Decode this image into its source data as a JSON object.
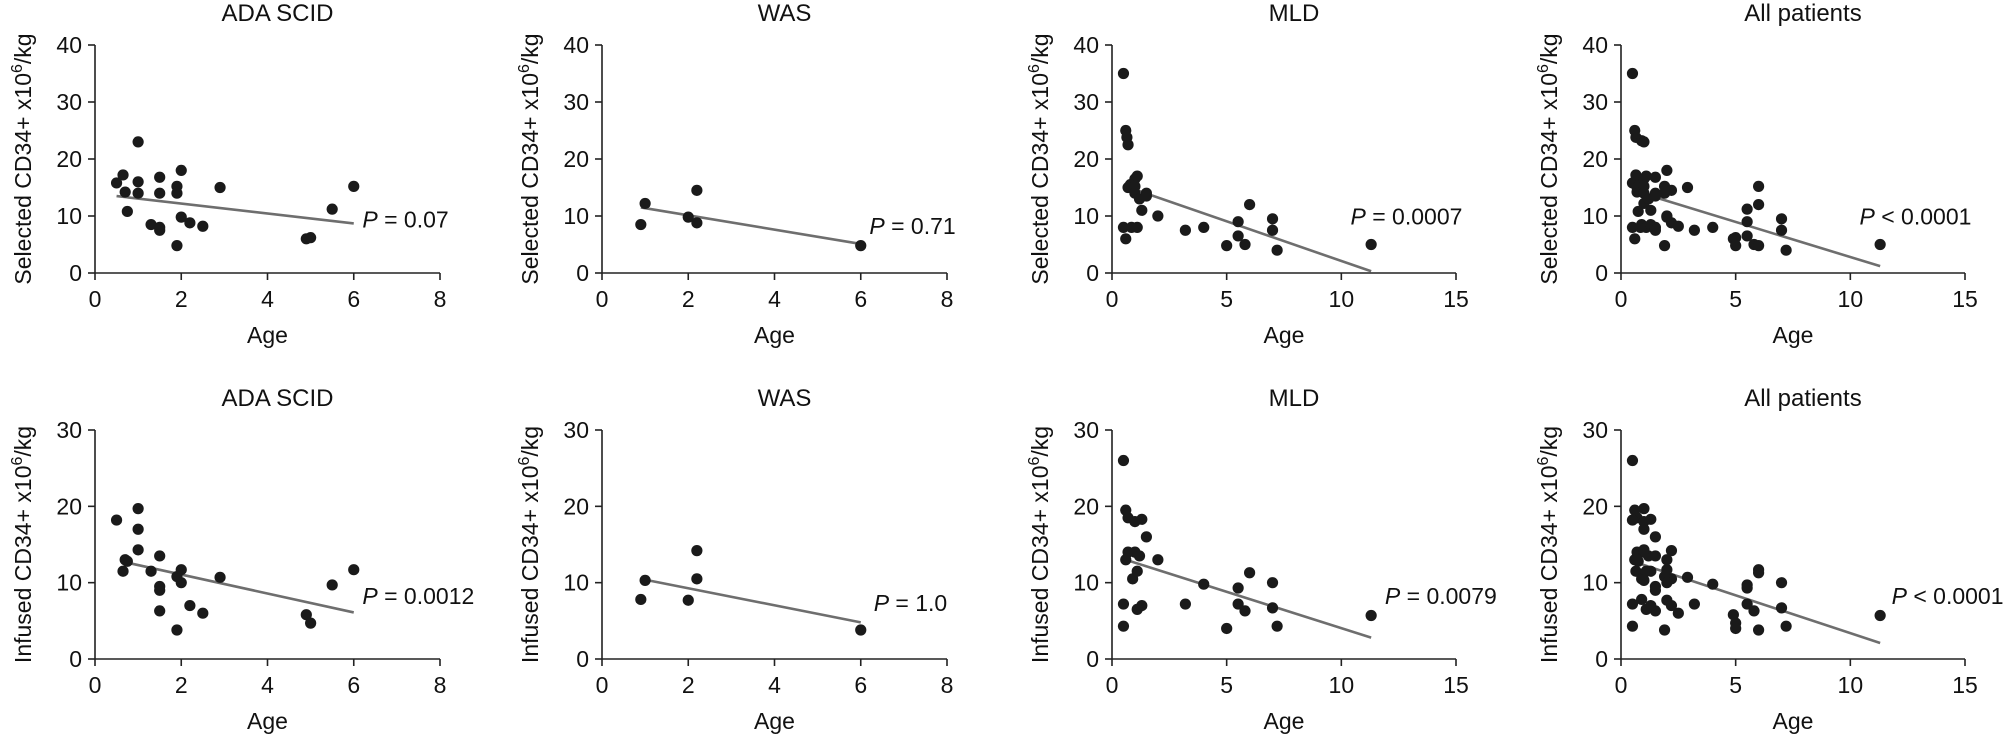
{
  "chart_data": [
    {
      "type": "scatter",
      "title": "ADA SCID",
      "xlabel": "Age",
      "ylabel_prefix": "Selected CD34+ x10",
      "ylabel_sup": "6",
      "ylabel_suffix": "/kg",
      "xlim": [
        0,
        8
      ],
      "ylim": [
        0,
        40
      ],
      "xticks": [
        0,
        2,
        4,
        6,
        8
      ],
      "yticks": [
        0,
        10,
        20,
        30,
        40
      ],
      "points": [
        [
          0.5,
          15.8
        ],
        [
          0.65,
          17.2
        ],
        [
          0.7,
          14.2
        ],
        [
          0.75,
          10.8
        ],
        [
          1.0,
          23
        ],
        [
          1.0,
          14
        ],
        [
          1.0,
          16
        ],
        [
          1.3,
          8.5
        ],
        [
          1.5,
          8
        ],
        [
          1.5,
          7.5
        ],
        [
          1.5,
          14
        ],
        [
          1.5,
          16.8
        ],
        [
          1.9,
          15.2
        ],
        [
          1.9,
          14
        ],
        [
          1.9,
          4.8
        ],
        [
          2.0,
          18
        ],
        [
          2.0,
          9.8
        ],
        [
          2.2,
          8.8
        ],
        [
          2.5,
          8.2
        ],
        [
          2.9,
          15
        ],
        [
          4.9,
          6
        ],
        [
          5.0,
          6.2
        ],
        [
          5.5,
          11.2
        ],
        [
          6.0,
          15.2
        ]
      ],
      "fit": [
        [
          0.5,
          13.5
        ],
        [
          6.0,
          8.7
        ]
      ],
      "p_label": "P",
      "p_text": " = 0.07",
      "p_anchor": [
        6.2,
        8.0
      ]
    },
    {
      "type": "scatter",
      "title": "WAS",
      "xlabel": "Age",
      "ylabel_prefix": "Selected CD34+ x10",
      "ylabel_sup": "6",
      "ylabel_suffix": "/kg",
      "xlim": [
        0,
        8
      ],
      "ylim": [
        0,
        40
      ],
      "xticks": [
        0,
        2,
        4,
        6,
        8
      ],
      "yticks": [
        0,
        10,
        20,
        30,
        40
      ],
      "points": [
        [
          0.9,
          8.5
        ],
        [
          1.0,
          12.2
        ],
        [
          2.0,
          9.8
        ],
        [
          2.2,
          8.8
        ],
        [
          2.2,
          14.5
        ],
        [
          6.0,
          4.8
        ]
      ],
      "fit": [
        [
          0.9,
          11.5
        ],
        [
          6.0,
          5.1
        ]
      ],
      "p_label": "P",
      "p_text": " = 0.71",
      "p_anchor": [
        6.2,
        6.8
      ]
    },
    {
      "type": "scatter",
      "title": "MLD",
      "xlabel": "Age",
      "ylabel_prefix": "Selected CD34+ x10",
      "ylabel_sup": "6",
      "ylabel_suffix": "/kg",
      "xlim": [
        0,
        15
      ],
      "ylim": [
        0,
        40
      ],
      "xticks": [
        0,
        5,
        10,
        15
      ],
      "yticks": [
        0,
        10,
        20,
        30,
        40
      ],
      "points": [
        [
          0.5,
          35
        ],
        [
          0.6,
          25
        ],
        [
          0.65,
          23.8
        ],
        [
          0.7,
          22.5
        ],
        [
          0.5,
          8
        ],
        [
          0.6,
          6
        ],
        [
          0.7,
          15
        ],
        [
          0.8,
          15.5
        ],
        [
          0.85,
          8
        ],
        [
          1.0,
          16.5
        ],
        [
          1.0,
          15.2
        ],
        [
          1.0,
          14
        ],
        [
          1.1,
          17
        ],
        [
          1.1,
          8
        ],
        [
          1.2,
          13
        ],
        [
          1.3,
          11
        ],
        [
          1.5,
          14
        ],
        [
          1.5,
          13.5
        ],
        [
          2.0,
          10
        ],
        [
          3.2,
          7.5
        ],
        [
          4.0,
          8
        ],
        [
          5.0,
          4.8
        ],
        [
          5.5,
          9
        ],
        [
          5.5,
          6.5
        ],
        [
          5.8,
          5
        ],
        [
          6.0,
          12
        ],
        [
          7.0,
          9.5
        ],
        [
          7.0,
          7.5
        ],
        [
          7.2,
          4
        ],
        [
          11.3,
          5
        ]
      ],
      "fit": [
        [
          0.6,
          15.2
        ],
        [
          11.3,
          0.3
        ]
      ],
      "p_label": "P",
      "p_text": " = 0.0007",
      "p_anchor": [
        10.4,
        8.5
      ]
    },
    {
      "type": "scatter",
      "title": "All patients",
      "xlabel": "Age",
      "ylabel_prefix": "Selected CD34+ x10",
      "ylabel_sup": "6",
      "ylabel_suffix": "/kg",
      "xlim": [
        0,
        15
      ],
      "ylim": [
        0,
        40
      ],
      "xticks": [
        0,
        5,
        10,
        15
      ],
      "yticks": [
        0,
        10,
        20,
        30,
        40
      ],
      "points": [
        [
          0.5,
          35
        ],
        [
          0.6,
          25
        ],
        [
          0.65,
          23.8
        ],
        [
          0.9,
          23.2
        ],
        [
          1.0,
          23
        ],
        [
          0.5,
          15.8
        ],
        [
          0.65,
          17.2
        ],
        [
          0.7,
          14.2
        ],
        [
          0.75,
          10.8
        ],
        [
          0.5,
          8
        ],
        [
          0.6,
          6
        ],
        [
          0.7,
          15
        ],
        [
          0.8,
          15.5
        ],
        [
          0.85,
          8
        ],
        [
          1.0,
          16.5
        ],
        [
          1.0,
          15.2
        ],
        [
          1.0,
          14
        ],
        [
          1.0,
          12.2
        ],
        [
          0.9,
          8.5
        ],
        [
          1.1,
          17
        ],
        [
          1.1,
          8
        ],
        [
          1.2,
          13
        ],
        [
          1.3,
          11
        ],
        [
          1.3,
          8.5
        ],
        [
          1.5,
          14
        ],
        [
          1.5,
          13.5
        ],
        [
          1.5,
          16.8
        ],
        [
          1.5,
          8
        ],
        [
          1.5,
          7.5
        ],
        [
          1.9,
          15.2
        ],
        [
          1.9,
          14
        ],
        [
          1.9,
          4.8
        ],
        [
          2.0,
          18
        ],
        [
          2.0,
          9.8
        ],
        [
          2.0,
          10
        ],
        [
          2.2,
          14.5
        ],
        [
          2.2,
          8.8
        ],
        [
          2.5,
          8.2
        ],
        [
          2.9,
          15
        ],
        [
          3.2,
          7.5
        ],
        [
          4.0,
          8
        ],
        [
          4.9,
          6
        ],
        [
          5.0,
          4.8
        ],
        [
          5.0,
          6.2
        ],
        [
          5.5,
          11.2
        ],
        [
          5.5,
          9
        ],
        [
          5.5,
          6.5
        ],
        [
          5.8,
          5
        ],
        [
          6.0,
          15.2
        ],
        [
          6.0,
          12
        ],
        [
          6.0,
          4.8
        ],
        [
          7.0,
          9.5
        ],
        [
          7.0,
          7.5
        ],
        [
          7.2,
          4
        ],
        [
          11.3,
          5
        ]
      ],
      "fit": [
        [
          0.5,
          14.5
        ],
        [
          11.3,
          1.2
        ]
      ],
      "p_label": "P",
      "p_text": " < 0.0001",
      "p_anchor": [
        10.4,
        8.5
      ]
    },
    {
      "type": "scatter",
      "title": "ADA SCID",
      "xlabel": "Age",
      "ylabel_prefix": "Infused CD34+ x10",
      "ylabel_sup": "6",
      "ylabel_suffix": "/kg",
      "xlim": [
        0,
        8
      ],
      "ylim": [
        0,
        30
      ],
      "xticks": [
        0,
        2,
        4,
        6,
        8
      ],
      "yticks": [
        0,
        10,
        20,
        30
      ],
      "points": [
        [
          0.5,
          18.2
        ],
        [
          0.65,
          11.5
        ],
        [
          0.7,
          13
        ],
        [
          0.75,
          12.8
        ],
        [
          1.0,
          19.7
        ],
        [
          1.0,
          17
        ],
        [
          1.0,
          14.3
        ],
        [
          1.3,
          11.5
        ],
        [
          1.5,
          13.5
        ],
        [
          1.5,
          9.5
        ],
        [
          1.5,
          9
        ],
        [
          1.5,
          6.3
        ],
        [
          1.9,
          3.8
        ],
        [
          1.9,
          10.8
        ],
        [
          2.0,
          11.7
        ],
        [
          2.0,
          10
        ],
        [
          2.2,
          7
        ],
        [
          2.5,
          6
        ],
        [
          2.9,
          10.7
        ],
        [
          4.9,
          5.8
        ],
        [
          5.0,
          4.7
        ],
        [
          5.5,
          9.7
        ],
        [
          6.0,
          11.7
        ]
      ],
      "fit": [
        [
          0.6,
          12.8
        ],
        [
          6.0,
          6.1
        ]
      ],
      "p_label": "P",
      "p_text": " = 0.0012",
      "p_anchor": [
        6.2,
        7.2
      ]
    },
    {
      "type": "scatter",
      "title": "WAS",
      "xlabel": "Age",
      "ylabel_prefix": "Infused CD34+ x10",
      "ylabel_sup": "6",
      "ylabel_suffix": "/kg",
      "xlim": [
        0,
        8
      ],
      "ylim": [
        0,
        30
      ],
      "xticks": [
        0,
        2,
        4,
        6,
        8
      ],
      "yticks": [
        0,
        10,
        20,
        30
      ],
      "points": [
        [
          0.9,
          7.8
        ],
        [
          1.0,
          10.3
        ],
        [
          2.0,
          7.7
        ],
        [
          2.2,
          10.5
        ],
        [
          2.2,
          14.2
        ],
        [
          6.0,
          3.8
        ]
      ],
      "fit": [
        [
          0.9,
          10.5
        ],
        [
          6.0,
          4.8
        ]
      ],
      "p_label": "P",
      "p_text": " = 1.0",
      "p_anchor": [
        6.3,
        6.3
      ]
    },
    {
      "type": "scatter",
      "title": "MLD",
      "xlabel": "Age",
      "ylabel_prefix": "Infused CD34+ x10",
      "ylabel_sup": "6",
      "ylabel_suffix": "/kg",
      "xlim": [
        0,
        15
      ],
      "ylim": [
        0,
        30
      ],
      "xticks": [
        0,
        5,
        10,
        15
      ],
      "yticks": [
        0,
        10,
        20,
        30
      ],
      "points": [
        [
          0.5,
          26
        ],
        [
          0.6,
          19.5
        ],
        [
          0.7,
          18.5
        ],
        [
          1.0,
          18
        ],
        [
          1.3,
          18.3
        ],
        [
          1.5,
          16
        ],
        [
          0.6,
          13
        ],
        [
          0.7,
          14
        ],
        [
          1.0,
          14
        ],
        [
          1.2,
          13.5
        ],
        [
          0.5,
          7.2
        ],
        [
          0.5,
          4.3
        ],
        [
          0.9,
          10.5
        ],
        [
          1.1,
          11.5
        ],
        [
          1.3,
          7
        ],
        [
          1.1,
          6.5
        ],
        [
          2.0,
          13
        ],
        [
          3.2,
          7.2
        ],
        [
          4.0,
          9.8
        ],
        [
          5.0,
          4
        ],
        [
          5.5,
          9.3
        ],
        [
          5.5,
          7.2
        ],
        [
          5.8,
          6.3
        ],
        [
          6.0,
          11.3
        ],
        [
          7.0,
          10
        ],
        [
          7.0,
          6.7
        ],
        [
          7.2,
          4.3
        ],
        [
          11.3,
          5.7
        ]
      ],
      "fit": [
        [
          0.6,
          13
        ],
        [
          11.3,
          2.8
        ]
      ],
      "p_label": "P",
      "p_text": " = 0.0079",
      "p_anchor": [
        11.9,
        7.2
      ]
    },
    {
      "type": "scatter",
      "title": "All patients",
      "xlabel": "Age",
      "ylabel_prefix": "Infused CD34+ x10",
      "ylabel_sup": "6",
      "ylabel_suffix": "/kg",
      "xlim": [
        0,
        15
      ],
      "ylim": [
        0,
        30
      ],
      "xticks": [
        0,
        5,
        10,
        15
      ],
      "yticks": [
        0,
        10,
        20,
        30
      ],
      "points": [
        [
          0.5,
          26
        ],
        [
          0.6,
          19.5
        ],
        [
          0.7,
          18.5
        ],
        [
          1.0,
          18
        ],
        [
          1.3,
          18.3
        ],
        [
          1.5,
          16
        ],
        [
          0.5,
          18.2
        ],
        [
          1.0,
          19.7
        ],
        [
          1.0,
          17
        ],
        [
          0.6,
          13
        ],
        [
          0.7,
          14
        ],
        [
          1.0,
          14
        ],
        [
          1.2,
          13.5
        ],
        [
          1.0,
          14.3
        ],
        [
          0.65,
          11.5
        ],
        [
          0.7,
          13
        ],
        [
          0.75,
          12.8
        ],
        [
          1.3,
          11.5
        ],
        [
          1.5,
          13.5
        ],
        [
          1.5,
          9.5
        ],
        [
          1.5,
          9
        ],
        [
          1.5,
          6.3
        ],
        [
          0.5,
          7.2
        ],
        [
          0.5,
          4.3
        ],
        [
          0.9,
          10.5
        ],
        [
          1.1,
          11.5
        ],
        [
          1.3,
          7
        ],
        [
          1.1,
          6.5
        ],
        [
          0.9,
          7.8
        ],
        [
          1.0,
          10.3
        ],
        [
          2.0,
          7.7
        ],
        [
          2.2,
          10.5
        ],
        [
          2.2,
          14.2
        ],
        [
          1.9,
          3.8
        ],
        [
          1.9,
          10.8
        ],
        [
          2.0,
          11.7
        ],
        [
          2.0,
          10
        ],
        [
          2.0,
          13
        ],
        [
          2.2,
          7
        ],
        [
          2.5,
          6
        ],
        [
          2.9,
          10.7
        ],
        [
          3.2,
          7.2
        ],
        [
          4.0,
          9.8
        ],
        [
          4.9,
          5.8
        ],
        [
          5.0,
          4.7
        ],
        [
          5.0,
          4
        ],
        [
          5.5,
          9.7
        ],
        [
          5.5,
          9.3
        ],
        [
          5.5,
          7.2
        ],
        [
          5.8,
          6.3
        ],
        [
          6.0,
          11.7
        ],
        [
          6.0,
          11.3
        ],
        [
          6.0,
          3.8
        ],
        [
          7.0,
          10
        ],
        [
          7.0,
          6.7
        ],
        [
          7.2,
          4.3
        ],
        [
          11.3,
          5.7
        ]
      ],
      "fit": [
        [
          0.5,
          12.8
        ],
        [
          11.3,
          2.1
        ]
      ],
      "p_label": "P",
      "p_text": " < 0.0001",
      "p_anchor": [
        11.8,
        7.2
      ]
    }
  ]
}
